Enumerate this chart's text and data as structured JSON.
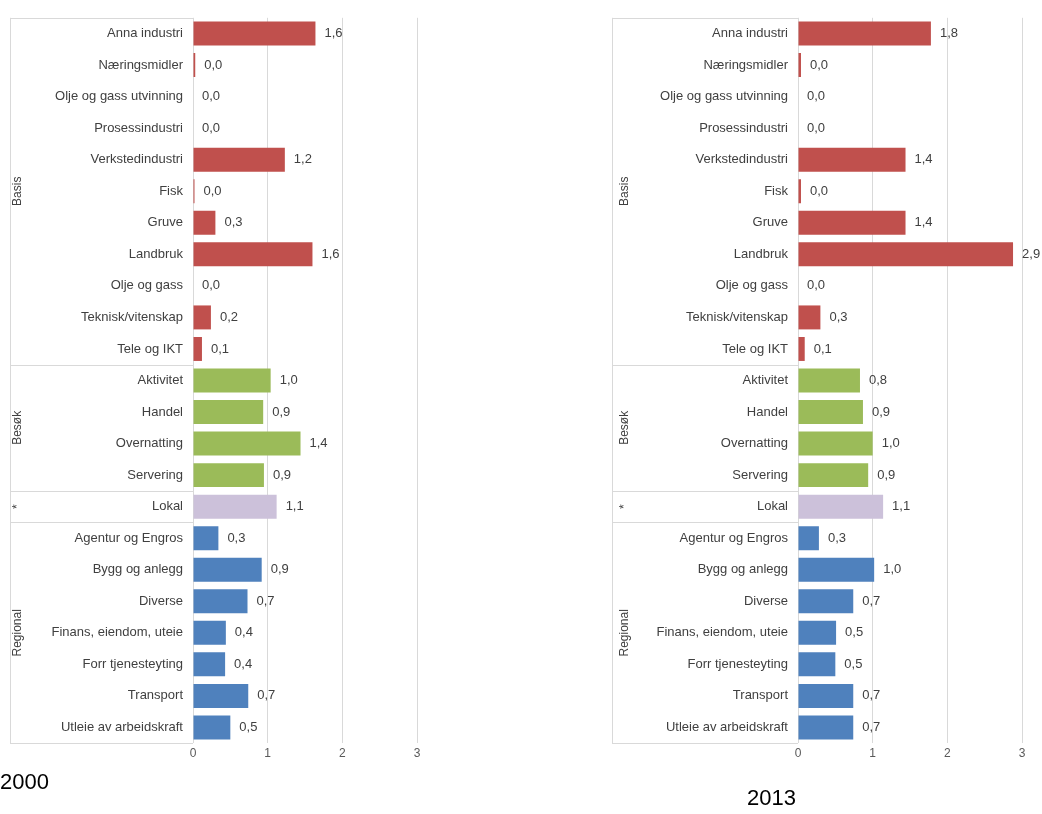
{
  "chart_data": [
    {
      "type": "bar",
      "orientation": "horizontal",
      "title": "2000",
      "categories": [
        "Anna industri",
        "Næringsmidler",
        "Olje og gass utvinning",
        "Prosessindustri",
        "Verkstedindustri",
        "Fisk",
        "Gruve",
        "Landbruk",
        "Olje og gass",
        "Teknisk/vitenskap",
        "Tele og IKT",
        "Aktivitet",
        "Handel",
        "Overnatting",
        "Servering",
        "Lokal",
        "Agentur og Engros",
        "Bygg og anlegg",
        "Diverse",
        "Finans, eiendom, uteie",
        "Forr tjenesteyting",
        "Transport",
        "Utleie av arbeidskraft"
      ],
      "values": [
        1.64,
        0.03,
        0,
        0,
        1.23,
        0.02,
        0.3,
        1.6,
        0,
        0.24,
        0.12,
        1.04,
        0.94,
        1.44,
        0.95,
        1.12,
        0.34,
        0.92,
        0.73,
        0.44,
        0.43,
        0.74,
        0.5
      ],
      "value_labels": [
        "1,6",
        "0,0",
        "0,0",
        "0,0",
        "1,2",
        "0,0",
        "0,3",
        "1,6",
        "0,0",
        "0,2",
        "0,1",
        "1,0",
        "0,9",
        "1,4",
        "0,9",
        "1,1",
        "0,3",
        "0,9",
        "0,7",
        "0,4",
        "0,4",
        "0,7",
        "0,5"
      ],
      "colors": [
        "#c0504d",
        "#c0504d",
        "#c0504d",
        "#c0504d",
        "#c0504d",
        "#c0504d",
        "#c0504d",
        "#c0504d",
        "#c0504d",
        "#c0504d",
        "#c0504d",
        "#9bbb59",
        "#9bbb59",
        "#9bbb59",
        "#9bbb59",
        "#ccc1da",
        "#4f81bd",
        "#4f81bd",
        "#4f81bd",
        "#4f81bd",
        "#4f81bd",
        "#4f81bd",
        "#4f81bd"
      ],
      "xlim": [
        0,
        3
      ],
      "xticks": [
        0,
        1,
        2,
        3
      ],
      "grid": "x",
      "annotations": [
        "Basis",
        "Besøk",
        "*",
        "Regional"
      ]
    },
    {
      "type": "bar",
      "orientation": "horizontal",
      "title": "2013",
      "categories": [
        "Anna industri",
        "Næringsmidler",
        "Olje og gass utvinning",
        "Prosessindustri",
        "Verkstedindustri",
        "Fisk",
        "Gruve",
        "Landbruk",
        "Olje og gass",
        "Teknisk/vitenskap",
        "Tele og IKT",
        "Aktivitet",
        "Handel",
        "Overnatting",
        "Servering",
        "Lokal",
        "Agentur og Engros",
        "Bygg og anlegg",
        "Diverse",
        "Finans, eiendom, uteie",
        "Forr tjenesteyting",
        "Transport",
        "Utleie av arbeidskraft"
      ],
      "values": [
        1.78,
        0.04,
        0,
        0,
        1.44,
        0.04,
        1.44,
        2.88,
        0,
        0.3,
        0.09,
        0.83,
        0.87,
        1.0,
        0.94,
        1.14,
        0.28,
        1.02,
        0.74,
        0.51,
        0.5,
        0.74,
        0.74
      ],
      "value_labels": [
        "1,8",
        "0,0",
        "0,0",
        "0,0",
        "1,4",
        "0,0",
        "1,4",
        "2,9",
        "0,0",
        "0,3",
        "0,1",
        "0,8",
        "0,9",
        "1,0",
        "0,9",
        "1,1",
        "0,3",
        "1,0",
        "0,7",
        "0,5",
        "0,5",
        "0,7",
        "0,7"
      ],
      "colors": [
        "#c0504d",
        "#c0504d",
        "#c0504d",
        "#c0504d",
        "#c0504d",
        "#c0504d",
        "#c0504d",
        "#c0504d",
        "#c0504d",
        "#c0504d",
        "#c0504d",
        "#9bbb59",
        "#9bbb59",
        "#9bbb59",
        "#9bbb59",
        "#ccc1da",
        "#4f81bd",
        "#4f81bd",
        "#4f81bd",
        "#4f81bd",
        "#4f81bd",
        "#4f81bd",
        "#4f81bd"
      ],
      "xlim": [
        0,
        3
      ],
      "xticks": [
        0,
        1,
        2,
        3
      ],
      "grid": "x",
      "annotations": [
        "Basis",
        "Besøk",
        "*",
        "Regional"
      ]
    }
  ]
}
